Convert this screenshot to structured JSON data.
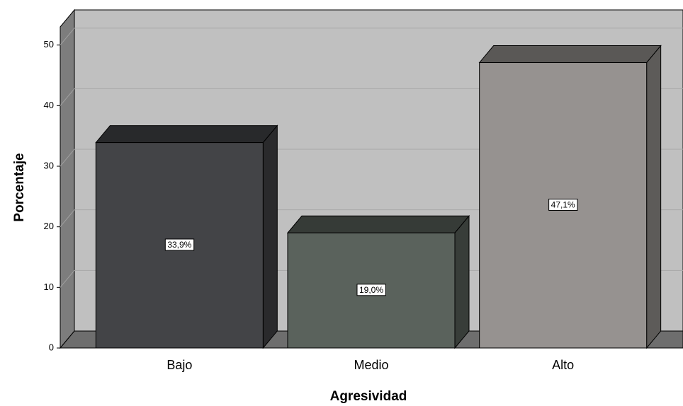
{
  "chart_data": {
    "type": "bar",
    "x_label": "Agresividad",
    "y_label": "Porcentaje",
    "categories": [
      "Bajo",
      "Medio",
      "Alto"
    ],
    "values": [
      33.9,
      19.0,
      47.1
    ],
    "value_labels": [
      "33,9%",
      "19,0%",
      "47,1%"
    ],
    "colors": [
      "#434447",
      "#5a625c",
      "#969290"
    ],
    "ylim": [
      0,
      53
    ],
    "yticks": [
      0,
      10,
      20,
      30,
      40,
      50
    ],
    "grid": true
  }
}
